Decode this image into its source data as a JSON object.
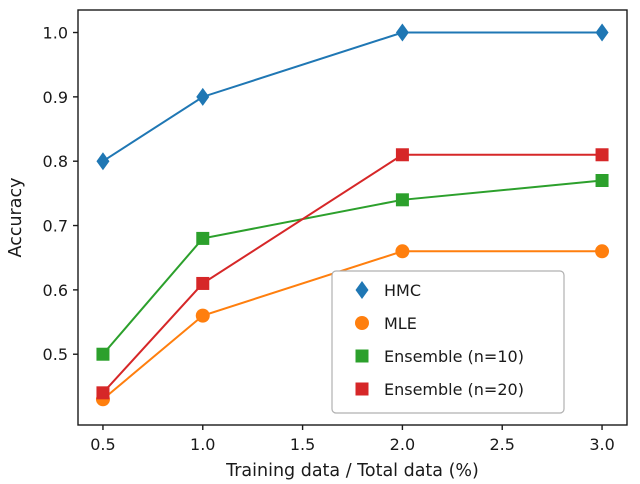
{
  "chart_data": {
    "type": "line",
    "title": "",
    "xlabel": "Training data / Total data (%)",
    "ylabel": "Accuracy",
    "x": [
      0.5,
      1.0,
      2.0,
      3.0
    ],
    "xlim": [
      0.375,
      3.125
    ],
    "ylim": [
      0.39,
      1.035
    ],
    "xticks": [
      0.5,
      1.0,
      1.5,
      2.0,
      2.5,
      3.0
    ],
    "yticks": [
      0.5,
      0.6,
      0.7,
      0.8,
      0.9,
      1.0
    ],
    "grid": false,
    "legend_position": "lower right",
    "series": [
      {
        "name": "HMC",
        "color": "#1f77b4",
        "marker": "diamond",
        "values": [
          0.8,
          0.9,
          1.0,
          1.0
        ]
      },
      {
        "name": "MLE",
        "color": "#ff7f0e",
        "marker": "circle",
        "values": [
          0.43,
          0.56,
          0.66,
          0.66
        ]
      },
      {
        "name": "Ensemble (n=10)",
        "color": "#2ca02c",
        "marker": "square",
        "values": [
          0.5,
          0.68,
          0.74,
          0.77
        ]
      },
      {
        "name": "Ensemble (n=20)",
        "color": "#d62728",
        "marker": "square",
        "values": [
          0.44,
          0.61,
          0.81,
          0.81
        ]
      }
    ],
    "colors": {
      "spine": "#1a1a1a",
      "legend_edge": "#b0b0b0",
      "background": "#ffffff"
    }
  }
}
